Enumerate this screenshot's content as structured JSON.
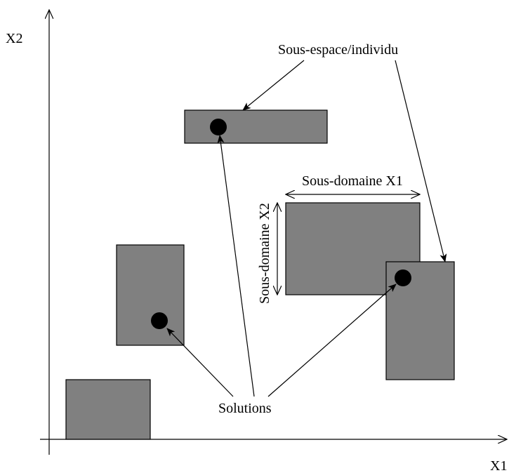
{
  "diagram": {
    "axes": {
      "x_label": "X1",
      "y_label": "X2"
    },
    "labels": {
      "subspace": "Sous-espace/individu",
      "subdomain_x1": "Sous-domaine X1",
      "subdomain_x2": "Sous-domaine X2",
      "solutions": "Solutions"
    },
    "colors": {
      "box_fill": "#808080",
      "line": "#000000",
      "background": "#ffffff"
    }
  }
}
